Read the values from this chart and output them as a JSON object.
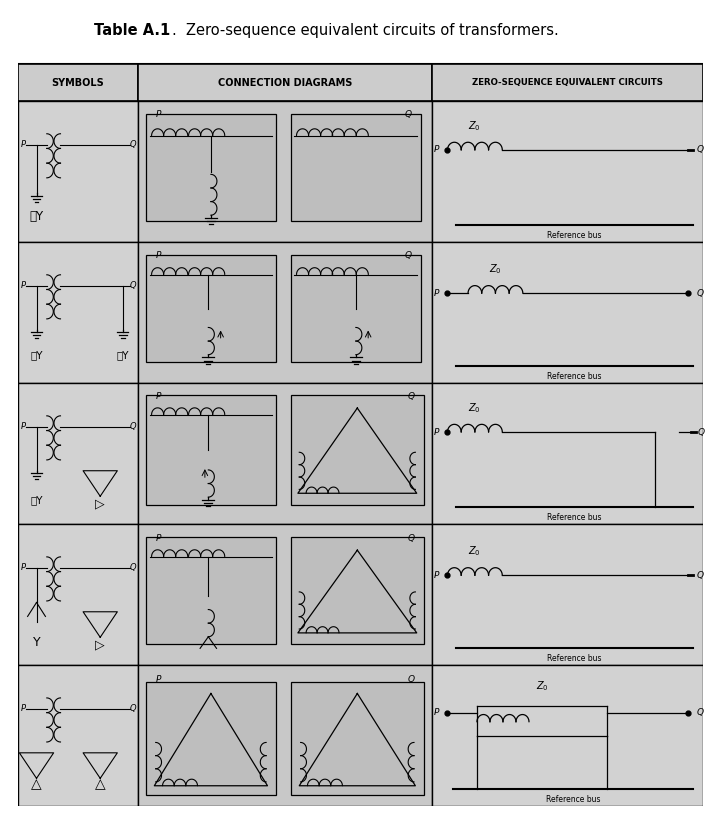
{
  "title_bold": "Table A.1",
  "title_normal": ".  Zero-sequence equivalent circuits of transformers.",
  "col_headers": [
    "SYMBOLS",
    "CONNECTION DIAGRAMS",
    "ZERO-SEQUENCE EQUIVALENT CIRCUITS"
  ],
  "n_rows": 5,
  "C0": 0.0,
  "C1": 1.75,
  "C2": 6.05,
  "C3": 10.0,
  "THEAD": 9.6,
  "HROW": 0.48,
  "ref_bus_label": "Reference bus",
  "bg_color": "#d0d0d0",
  "cell_color": "#cccccc",
  "border_color": "black"
}
